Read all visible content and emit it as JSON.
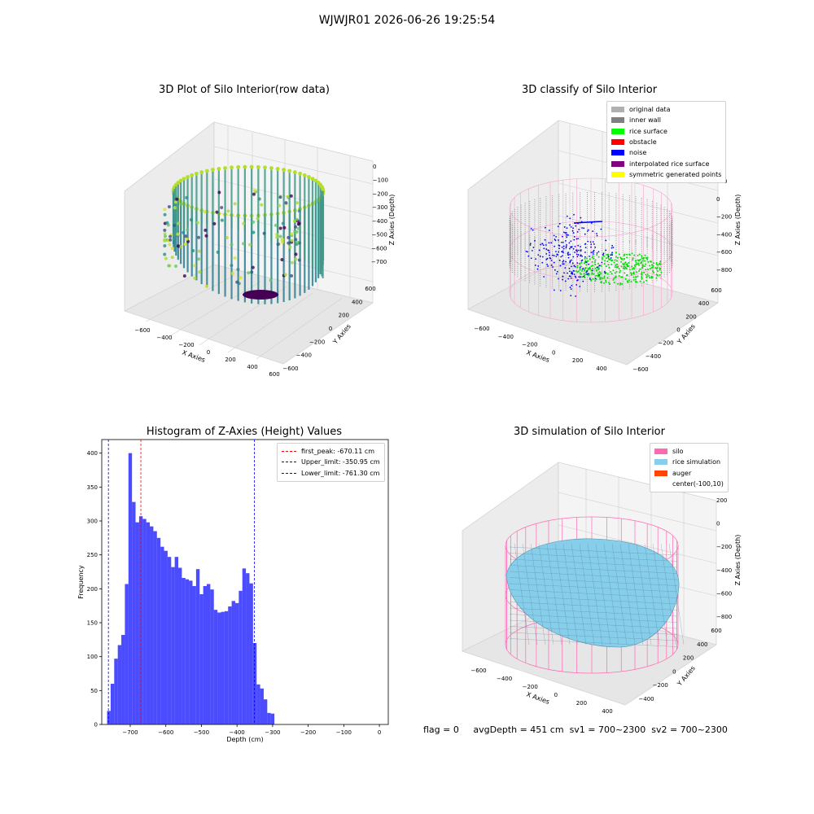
{
  "suptitle": "WJWJR01 2026-06-26 19:25:54",
  "panels": {
    "raw": {
      "title": "3D Plot of Silo Interior(row data)",
      "x_label": "X Axies",
      "y_label": "Y Axies",
      "z_label": "Z Axies (Depth)",
      "x_ticks": [
        "-600",
        "-400",
        "-200",
        "0",
        "200",
        "400",
        "600"
      ],
      "y_ticks": [
        "-600",
        "-400",
        "-200",
        "0",
        "200",
        "400",
        "600"
      ],
      "z_ticks": [
        "0",
        "-100",
        "-200",
        "-300",
        "-400",
        "-500",
        "-600",
        "-700"
      ]
    },
    "classify": {
      "title": "3D classify of Silo Interior",
      "x_label": "X Axies",
      "y_label": "Y Axies",
      "z_label": "Z Axies (Depth)",
      "x_ticks": [
        "-600",
        "-400",
        "-200",
        "0",
        "200",
        "400"
      ],
      "y_ticks": [
        "-600",
        "-400",
        "-200",
        "0",
        "200",
        "400",
        "600"
      ],
      "z_ticks": [
        "200",
        "0",
        "-200",
        "-400",
        "-600",
        "-800"
      ],
      "legend": [
        {
          "label": "original data",
          "color": "#b0b0b0"
        },
        {
          "label": "inner wall",
          "color": "#808080"
        },
        {
          "label": "rice surface",
          "color": "#00ff00"
        },
        {
          "label": "obstacle",
          "color": "#ff0000"
        },
        {
          "label": "noise",
          "color": "#0000ff"
        },
        {
          "label": "interpolated rice surface",
          "color": "#800080"
        },
        {
          "label": "symmetric generated points",
          "color": "#ffff00"
        }
      ]
    },
    "simulation": {
      "title": "3D simulation of Silo Interior",
      "x_label": "X Axies",
      "y_label": "Y Axies",
      "z_label": "Z Axies (Depth)",
      "x_ticks": [
        "-600",
        "-400",
        "-200",
        "0",
        "200",
        "400"
      ],
      "y_ticks": [
        "-400",
        "-200",
        "0",
        "200",
        "400",
        "600"
      ],
      "z_ticks": [
        "200",
        "0",
        "-200",
        "-400",
        "-600",
        "-800"
      ],
      "legend": [
        {
          "label": "silo",
          "color": "#ff69b4"
        },
        {
          "label": "rice simulation",
          "color": "#87ceeb"
        },
        {
          "label": "auger",
          "color": "#ff4500"
        },
        {
          "label": "center(-100,10)",
          "color": ""
        }
      ]
    }
  },
  "chart_data": {
    "type": "bar",
    "title": "Histogram of Z-Axies (Height) Values",
    "xlabel": "Depth (cm)",
    "ylabel": "Frequency",
    "xlim": [
      -780,
      25
    ],
    "ylim": [
      0,
      420
    ],
    "x_ticks": [
      -700,
      -600,
      -500,
      -400,
      -300,
      -200,
      -100,
      0
    ],
    "y_ticks": [
      0,
      50,
      100,
      150,
      200,
      250,
      300,
      350,
      400
    ],
    "bin_edges_start": -765,
    "bin_width": 10,
    "values": [
      20,
      60,
      97,
      117,
      132,
      207,
      400,
      328,
      298,
      307,
      303,
      298,
      292,
      285,
      275,
      262,
      256,
      247,
      232,
      247,
      231,
      216,
      214,
      212,
      204,
      229,
      192,
      204,
      207,
      199,
      169,
      165,
      166,
      167,
      174,
      182,
      179,
      197,
      230,
      223,
      208,
      120,
      59,
      53,
      37,
      17,
      16
    ],
    "color": "#0000ff",
    "lines": [
      {
        "label": "first_peak: -670.11 cm",
        "x": -670.11,
        "color": "#ff0000"
      },
      {
        "label": "Upper_limit: -350.95 cm",
        "x": -350.95,
        "color": "#0000ff"
      },
      {
        "label": "Lower_limit: -761.30 cm",
        "x": -761.3,
        "color": "#0000ff"
      }
    ],
    "legend_position": "top-right"
  },
  "footer": {
    "flag": "flag = 0",
    "avg": "avgDepth = 451 cm",
    "sv1": "sv1 = 700~2300",
    "sv2": "sv2 = 700~2300"
  }
}
